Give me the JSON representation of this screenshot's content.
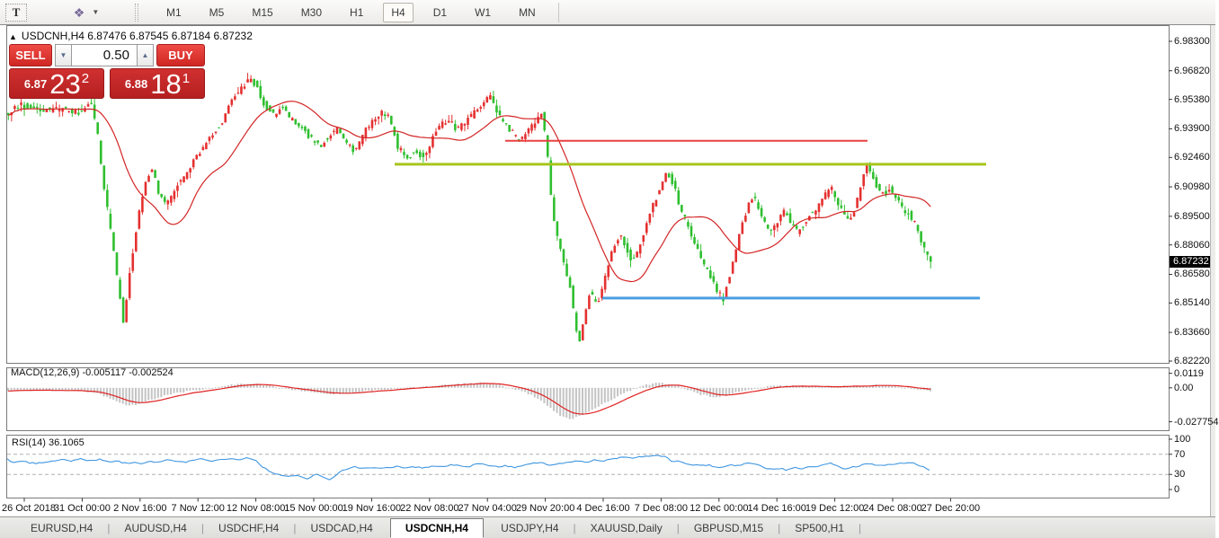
{
  "toolbar": {
    "text_tool_label": "T",
    "objects_icon_glyph": "❖",
    "dropdown_caret": "▼",
    "timeframes": [
      "M1",
      "M5",
      "M15",
      "M30",
      "H1",
      "H4",
      "D1",
      "W1",
      "MN"
    ],
    "active_timeframe": "H4"
  },
  "title": {
    "collapse_icon": "▲",
    "symbol_period": "USDCNH,H4",
    "open": "6.87476",
    "high": "6.87545",
    "low": "6.87184",
    "close": "6.87232"
  },
  "trade_panel": {
    "sell_label": "SELL",
    "buy_label": "BUY",
    "volume": "0.50",
    "spin_down_glyph": "▼",
    "spin_up_glyph": "▲",
    "sell_price_small": "6.87",
    "sell_price_big": "23",
    "sell_price_sup": "2",
    "buy_price_small": "6.88",
    "buy_price_big": "18",
    "buy_price_sup": "1"
  },
  "price_axis": {
    "ticks": [
      "6.98300",
      "6.96820",
      "6.95380",
      "6.93900",
      "6.92460",
      "6.90980",
      "6.89500",
      "6.88060",
      "6.86580",
      "6.85140",
      "6.83660",
      "6.82220"
    ],
    "current_price": "6.87232"
  },
  "macd_panel": {
    "label": "MACD(12,26,9) -0.005117 -0.002524",
    "ticks": [
      {
        "label": "0.0119",
        "value": 0.0119
      },
      {
        "label": "0.00",
        "value": 0
      },
      {
        "label": "-0.027754",
        "value": -0.027754
      }
    ]
  },
  "rsi_panel": {
    "label": "RSI(14) 36.1065",
    "ticks": [
      {
        "label": "100",
        "value": 100
      },
      {
        "label": "70",
        "value": 70
      },
      {
        "label": "30",
        "value": 30
      },
      {
        "label": "0",
        "value": 0
      }
    ],
    "levels": [
      70,
      30
    ]
  },
  "tabs": {
    "items": [
      "EURUSD,H4",
      "AUDUSD,H4",
      "USDCHF,H4",
      "USDCAD,H4",
      "USDCNH,H4",
      "USDJPY,H4",
      "XAUUSD,Daily",
      "GBPUSD,M15",
      "SP500,H1"
    ],
    "active": "USDCNH,H4"
  },
  "colors": {
    "bull_candle": "#e53030",
    "bear_candle": "#2fbf2f",
    "ma_line": "#d42424",
    "macd_histogram": "#c4c4c4",
    "macd_signal": "#e02222",
    "rsi_line": "#3f96e0",
    "rsi_level_dash": "#b0b0b0",
    "hline_red": "#e84040",
    "hline_green": "#a8c41e",
    "hline_blue": "#4a9ee0",
    "panel_border": "#7a7a7a",
    "badge_bg": "#000000"
  },
  "chart_data": {
    "type": "candlestick",
    "symbol": "USDCNH",
    "period": "H4",
    "ylim": [
      6.8218,
      6.9902
    ],
    "grid": false,
    "x_labels": [
      "26 Oct 2018",
      "31 Oct 00:00",
      "2 Nov 16:00",
      "7 Nov 12:00",
      "12 Nov 08:00",
      "15 Nov 00:00",
      "19 Nov 16:00",
      "22 Nov 08:00",
      "27 Nov 04:00",
      "29 Nov 20:00",
      "4 Dec 16:00",
      "7 Dec 08:00",
      "12 Dec 00:00",
      "14 Dec 16:00",
      "19 Dec 12:00",
      "24 Dec 08:00",
      "27 Dec 20:00"
    ],
    "price_path": [
      [
        8,
        6.946
      ],
      [
        25,
        6.951
      ],
      [
        45,
        6.948
      ],
      [
        70,
        6.949
      ],
      [
        90,
        6.947
      ],
      [
        103,
        6.953
      ],
      [
        110,
        6.938
      ],
      [
        118,
        6.908
      ],
      [
        126,
        6.885
      ],
      [
        133,
        6.862
      ],
      [
        139,
        6.842
      ],
      [
        144,
        6.858
      ],
      [
        151,
        6.882
      ],
      [
        158,
        6.9
      ],
      [
        166,
        6.916
      ],
      [
        172,
        6.918
      ],
      [
        179,
        6.906
      ],
      [
        188,
        6.901
      ],
      [
        198,
        6.91
      ],
      [
        210,
        6.917
      ],
      [
        222,
        6.926
      ],
      [
        235,
        6.934
      ],
      [
        248,
        6.942
      ],
      [
        260,
        6.953
      ],
      [
        270,
        6.96
      ],
      [
        280,
        6.964
      ],
      [
        287,
        6.961
      ],
      [
        295,
        6.952
      ],
      [
        305,
        6.946
      ],
      [
        315,
        6.95
      ],
      [
        325,
        6.944
      ],
      [
        337,
        6.94
      ],
      [
        348,
        6.934
      ],
      [
        358,
        6.93
      ],
      [
        368,
        6.936
      ],
      [
        378,
        6.939
      ],
      [
        388,
        6.931
      ],
      [
        397,
        6.928
      ],
      [
        407,
        6.937
      ],
      [
        417,
        6.943
      ],
      [
        427,
        6.947
      ],
      [
        436,
        6.944
      ],
      [
        445,
        6.929
      ],
      [
        455,
        6.925
      ],
      [
        465,
        6.928
      ],
      [
        474,
        6.924
      ],
      [
        483,
        6.934
      ],
      [
        492,
        6.941
      ],
      [
        501,
        6.944
      ],
      [
        510,
        6.938
      ],
      [
        519,
        6.942
      ],
      [
        529,
        6.947
      ],
      [
        539,
        6.952
      ],
      [
        548,
        6.956
      ],
      [
        556,
        6.946
      ],
      [
        564,
        6.941
      ],
      [
        572,
        6.937
      ],
      [
        580,
        6.933
      ],
      [
        588,
        6.937
      ],
      [
        596,
        6.942
      ],
      [
        604,
        6.948
      ],
      [
        610,
        6.93
      ],
      [
        616,
        6.9
      ],
      [
        622,
        6.884
      ],
      [
        629,
        6.872
      ],
      [
        636,
        6.86
      ],
      [
        642,
        6.84
      ],
      [
        646,
        6.83
      ],
      [
        652,
        6.846
      ],
      [
        658,
        6.857
      ],
      [
        664,
        6.851
      ],
      [
        670,
        6.855
      ],
      [
        677,
        6.868
      ],
      [
        684,
        6.879
      ],
      [
        691,
        6.886
      ],
      [
        698,
        6.879
      ],
      [
        705,
        6.873
      ],
      [
        712,
        6.878
      ],
      [
        719,
        6.888
      ],
      [
        727,
        6.899
      ],
      [
        736,
        6.909
      ],
      [
        744,
        6.917
      ],
      [
        751,
        6.911
      ],
      [
        758,
        6.9
      ],
      [
        766,
        6.891
      ],
      [
        774,
        6.883
      ],
      [
        782,
        6.873
      ],
      [
        790,
        6.866
      ],
      [
        798,
        6.859
      ],
      [
        806,
        6.853
      ],
      [
        812,
        6.863
      ],
      [
        819,
        6.876
      ],
      [
        826,
        6.888
      ],
      [
        834,
        6.901
      ],
      [
        840,
        6.906
      ],
      [
        847,
        6.898
      ],
      [
        854,
        6.889
      ],
      [
        861,
        6.887
      ],
      [
        868,
        6.893
      ],
      [
        875,
        6.898
      ],
      [
        882,
        6.891
      ],
      [
        889,
        6.887
      ],
      [
        896,
        6.891
      ],
      [
        903,
        6.896
      ],
      [
        911,
        6.899
      ],
      [
        919,
        6.905
      ],
      [
        926,
        6.91
      ],
      [
        933,
        6.903
      ],
      [
        940,
        6.896
      ],
      [
        947,
        6.892
      ],
      [
        954,
        6.901
      ],
      [
        961,
        6.913
      ],
      [
        966,
        6.921
      ],
      [
        972,
        6.915
      ],
      [
        978,
        6.909
      ],
      [
        985,
        6.906
      ],
      [
        992,
        6.909
      ],
      [
        999,
        6.903
      ],
      [
        1006,
        6.899
      ],
      [
        1013,
        6.896
      ],
      [
        1020,
        6.891
      ],
      [
        1027,
        6.882
      ],
      [
        1034,
        6.874
      ],
      [
        1037,
        6.872
      ]
    ],
    "hlines": [
      {
        "name": "resistance-red",
        "price": 6.933,
        "x1": 562,
        "x2": 965,
        "width": 2,
        "color_key": "hline_red"
      },
      {
        "name": "resistance-green",
        "price": 6.9212,
        "x1": 439,
        "x2": 1097,
        "width": 3,
        "color_key": "hline_green"
      },
      {
        "name": "support-blue",
        "price": 6.8539,
        "x1": 670,
        "x2": 1090,
        "width": 3,
        "color_key": "hline_blue"
      }
    ],
    "ma_period": 22,
    "macd_ylim": [
      -0.034,
      0.016
    ],
    "macd_path": [
      [
        8,
        -0.0022
      ],
      [
        40,
        -0.002
      ],
      [
        70,
        -0.0022
      ],
      [
        95,
        -0.003
      ],
      [
        110,
        -0.005
      ],
      [
        122,
        -0.009
      ],
      [
        133,
        -0.0125
      ],
      [
        142,
        -0.0145
      ],
      [
        152,
        -0.0135
      ],
      [
        163,
        -0.011
      ],
      [
        175,
        -0.008
      ],
      [
        190,
        -0.005
      ],
      [
        205,
        -0.0032
      ],
      [
        220,
        -0.0018
      ],
      [
        235,
        -0.0002
      ],
      [
        250,
        0.0018
      ],
      [
        265,
        0.0032
      ],
      [
        280,
        0.0038
      ],
      [
        292,
        0.0025
      ],
      [
        305,
        0.0008
      ],
      [
        318,
        -0.0008
      ],
      [
        332,
        -0.0022
      ],
      [
        346,
        -0.0038
      ],
      [
        360,
        -0.0048
      ],
      [
        372,
        -0.005
      ],
      [
        385,
        -0.0042
      ],
      [
        398,
        -0.003
      ],
      [
        412,
        -0.0022
      ],
      [
        426,
        -0.0015
      ],
      [
        440,
        -0.0008
      ],
      [
        455,
        0.0002
      ],
      [
        470,
        0.001
      ],
      [
        485,
        0.0018
      ],
      [
        500,
        0.0026
      ],
      [
        515,
        0.0034
      ],
      [
        530,
        0.004
      ],
      [
        542,
        0.0036
      ],
      [
        553,
        0.0024
      ],
      [
        563,
        0.0006
      ],
      [
        573,
        -0.0015
      ],
      [
        583,
        -0.004
      ],
      [
        593,
        -0.007
      ],
      [
        602,
        -0.011
      ],
      [
        610,
        -0.016
      ],
      [
        617,
        -0.02
      ],
      [
        624,
        -0.0235
      ],
      [
        631,
        -0.0252
      ],
      [
        638,
        -0.0248
      ],
      [
        646,
        -0.0225
      ],
      [
        655,
        -0.019
      ],
      [
        665,
        -0.015
      ],
      [
        675,
        -0.011
      ],
      [
        685,
        -0.0075
      ],
      [
        695,
        -0.004
      ],
      [
        705,
        -0.0008
      ],
      [
        715,
        0.0018
      ],
      [
        725,
        0.0035
      ],
      [
        734,
        0.004
      ],
      [
        743,
        0.0032
      ],
      [
        752,
        0.0015
      ],
      [
        761,
        -0.0008
      ],
      [
        770,
        -0.0035
      ],
      [
        780,
        -0.0058
      ],
      [
        790,
        -0.0072
      ],
      [
        798,
        -0.0075
      ],
      [
        806,
        -0.0062
      ],
      [
        815,
        -0.0045
      ],
      [
        825,
        -0.0028
      ],
      [
        835,
        -0.0012
      ],
      [
        845,
        0.0002
      ],
      [
        857,
        0.0012
      ],
      [
        870,
        0.0018
      ],
      [
        882,
        0.002
      ],
      [
        894,
        0.0015
      ],
      [
        906,
        0.001
      ],
      [
        918,
        0.0008
      ],
      [
        930,
        0.001
      ],
      [
        942,
        0.0013
      ],
      [
        954,
        0.0018
      ],
      [
        966,
        0.0022
      ],
      [
        978,
        0.0024
      ],
      [
        990,
        0.0018
      ],
      [
        1002,
        0.0008
      ],
      [
        1014,
        -0.0005
      ],
      [
        1025,
        -0.0018
      ],
      [
        1037,
        -0.0025
      ]
    ],
    "rsi_path": [
      [
        8,
        60
      ],
      [
        16,
        52
      ],
      [
        24,
        58
      ],
      [
        32,
        53
      ],
      [
        40,
        52
      ],
      [
        50,
        55
      ],
      [
        60,
        57
      ],
      [
        70,
        59
      ],
      [
        80,
        57
      ],
      [
        90,
        61
      ],
      [
        100,
        57
      ],
      [
        110,
        60
      ],
      [
        120,
        55
      ],
      [
        130,
        57
      ],
      [
        140,
        52
      ],
      [
        150,
        55
      ],
      [
        158,
        51
      ],
      [
        166,
        57
      ],
      [
        175,
        54
      ],
      [
        185,
        59
      ],
      [
        195,
        56
      ],
      [
        205,
        54
      ],
      [
        215,
        59
      ],
      [
        225,
        61
      ],
      [
        235,
        57
      ],
      [
        245,
        59
      ],
      [
        255,
        62
      ],
      [
        265,
        59
      ],
      [
        275,
        63
      ],
      [
        283,
        60
      ],
      [
        290,
        48
      ],
      [
        298,
        38
      ],
      [
        306,
        32
      ],
      [
        314,
        28
      ],
      [
        322,
        25
      ],
      [
        330,
        29
      ],
      [
        336,
        24
      ],
      [
        342,
        21
      ],
      [
        348,
        27
      ],
      [
        354,
        31
      ],
      [
        360,
        24
      ],
      [
        366,
        20
      ],
      [
        372,
        26
      ],
      [
        378,
        35
      ],
      [
        386,
        41
      ],
      [
        394,
        45
      ],
      [
        402,
        43
      ],
      [
        412,
        44
      ],
      [
        422,
        41
      ],
      [
        432,
        44
      ],
      [
        442,
        46
      ],
      [
        452,
        43
      ],
      [
        462,
        45
      ],
      [
        472,
        43
      ],
      [
        482,
        47
      ],
      [
        492,
        45
      ],
      [
        502,
        49
      ],
      [
        512,
        47
      ],
      [
        522,
        46
      ],
      [
        532,
        51
      ],
      [
        542,
        49
      ],
      [
        552,
        45
      ],
      [
        562,
        47
      ],
      [
        572,
        44
      ],
      [
        582,
        49
      ],
      [
        592,
        52
      ],
      [
        602,
        54
      ],
      [
        612,
        47
      ],
      [
        622,
        51
      ],
      [
        632,
        54
      ],
      [
        642,
        57
      ],
      [
        652,
        54
      ],
      [
        662,
        59
      ],
      [
        672,
        57
      ],
      [
        682,
        61
      ],
      [
        692,
        64
      ],
      [
        702,
        62
      ],
      [
        712,
        65
      ],
      [
        722,
        67
      ],
      [
        732,
        67
      ],
      [
        740,
        66
      ],
      [
        748,
        54
      ],
      [
        756,
        57
      ],
      [
        764,
        51
      ],
      [
        772,
        49
      ],
      [
        780,
        47
      ],
      [
        788,
        49
      ],
      [
        796,
        44
      ],
      [
        804,
        43
      ],
      [
        812,
        49
      ],
      [
        820,
        47
      ],
      [
        828,
        51
      ],
      [
        836,
        53
      ],
      [
        844,
        49
      ],
      [
        852,
        42
      ],
      [
        860,
        40
      ],
      [
        868,
        42
      ],
      [
        876,
        38
      ],
      [
        884,
        44
      ],
      [
        892,
        41
      ],
      [
        900,
        47
      ],
      [
        908,
        44
      ],
      [
        916,
        50
      ],
      [
        924,
        52
      ],
      [
        932,
        47
      ],
      [
        940,
        41
      ],
      [
        948,
        44
      ],
      [
        956,
        47
      ],
      [
        964,
        52
      ],
      [
        972,
        50
      ],
      [
        980,
        47
      ],
      [
        988,
        49
      ],
      [
        996,
        51
      ],
      [
        1004,
        52
      ],
      [
        1012,
        54
      ],
      [
        1020,
        50
      ],
      [
        1028,
        44
      ],
      [
        1037,
        36
      ]
    ]
  }
}
